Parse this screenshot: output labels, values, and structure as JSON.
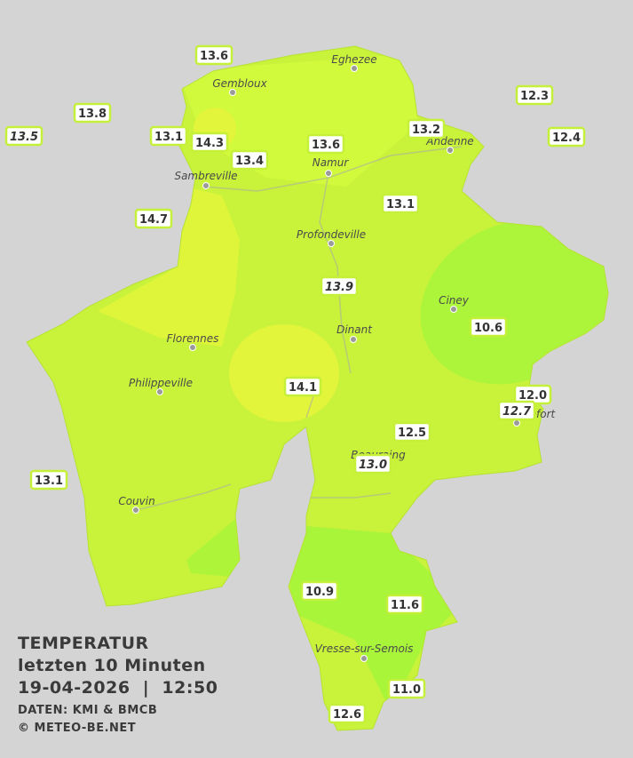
{
  "map": {
    "cities": [
      "Eghezee",
      "Gembloux",
      "Andenne",
      "Namur",
      "Sambreville",
      "Profondeville",
      "Ciney",
      "Dinant",
      "Florennes",
      "Philippeville",
      "Rochefort",
      "Beauraing",
      "Couvin",
      "Vresse-sur-Semois"
    ],
    "stations": [
      {
        "label": "13.6"
      },
      {
        "label": "13.8"
      },
      {
        "label": "13.5",
        "italic": true
      },
      {
        "label": "13.1"
      },
      {
        "label": "14.3"
      },
      {
        "label": "13.4"
      },
      {
        "label": "13.6"
      },
      {
        "label": "13.2"
      },
      {
        "label": "12.3"
      },
      {
        "label": "12.4"
      },
      {
        "label": "13.1"
      },
      {
        "label": "14.7"
      },
      {
        "label": "13.9",
        "italic": true
      },
      {
        "label": "10.6"
      },
      {
        "label": "14.1"
      },
      {
        "label": "12.0"
      },
      {
        "label": "12.7",
        "italic": true
      },
      {
        "label": "12.5"
      },
      {
        "label": "13.0",
        "italic": true
      },
      {
        "label": "13.1"
      },
      {
        "label": "10.9"
      },
      {
        "label": "11.6"
      },
      {
        "label": "11.0"
      },
      {
        "label": "12.6"
      }
    ]
  },
  "caption": {
    "title": "TEMPERATUR",
    "period": "letzten 10 Minuten",
    "datetime": "19-04-2026  |  12:50",
    "source": "DATEN: KMI & BMCB",
    "copyright": "© METEO-BE.NET"
  }
}
